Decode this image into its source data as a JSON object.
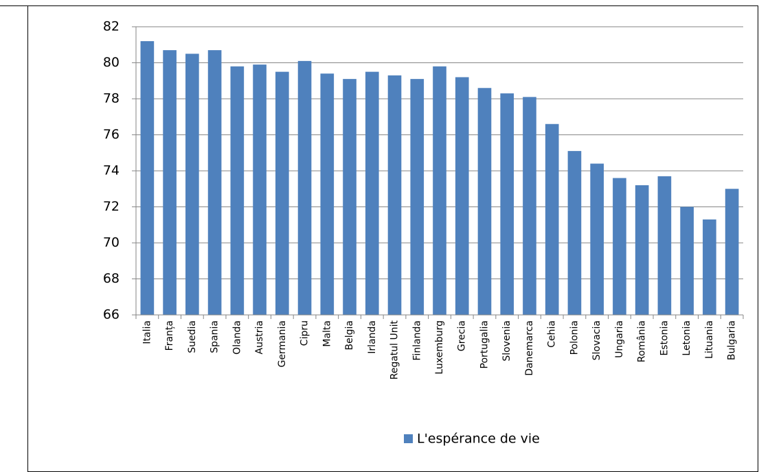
{
  "chart_data": {
    "type": "bar",
    "categories": [
      "Italia",
      "Franța",
      "Suedia",
      "Spania",
      "Olanda",
      "Austria",
      "Germania",
      "Cipru",
      "Malta",
      "Belgia",
      "Irlanda",
      "Regatul Unit",
      "Finlanda",
      "Luxemburg",
      "Grecia",
      "Portugalia",
      "Slovenia",
      "Danemarca",
      "Cehia",
      "Polonia",
      "Slovacia",
      "Ungaria",
      "România",
      "Estonia",
      "Letonia",
      "Lituania",
      "Bulgaria"
    ],
    "series": [
      {
        "name": "L'espérance de vie",
        "color": "#4f81bd",
        "values": [
          81.2,
          80.7,
          80.5,
          80.7,
          79.8,
          79.9,
          79.5,
          80.1,
          79.4,
          79.1,
          79.5,
          79.3,
          79.1,
          79.8,
          79.2,
          78.6,
          78.3,
          78.1,
          76.6,
          75.1,
          74.4,
          73.6,
          73.2,
          73.7,
          72.0,
          71.3,
          73.0
        ]
      }
    ],
    "ylim": [
      66,
      82
    ],
    "yticks": [
      66,
      68,
      70,
      72,
      74,
      76,
      78,
      80,
      82
    ],
    "grid": true,
    "legend": "bottom"
  }
}
